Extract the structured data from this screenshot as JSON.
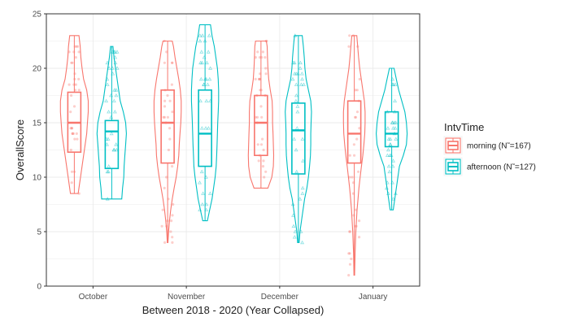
{
  "chart_data": {
    "type": "violin",
    "xlabel": "Between 2018 - 2020 (Year Collapsed)",
    "ylabel": "OverallScore",
    "ylim": [
      0,
      25
    ],
    "yticks": [
      0,
      5,
      10,
      15,
      20,
      25
    ],
    "grid": true,
    "categories": [
      "October",
      "November",
      "December",
      "January"
    ],
    "legend": {
      "title": "IntvTime",
      "placement": "right"
    },
    "series": [
      {
        "name": "morning (N˜=167)",
        "color": "#F8766D",
        "groups": [
          {
            "category": "October",
            "min": 8.5,
            "q1": 12.3,
            "median": 15,
            "q3": 17.8,
            "max": 23,
            "density": [
              [
                8.5,
                0.25
              ],
              [
                10,
                0.4
              ],
              [
                11,
                0.5
              ],
              [
                12,
                0.6
              ],
              [
                13,
                0.7
              ],
              [
                14,
                0.8
              ],
              [
                15,
                0.85
              ],
              [
                16,
                0.9
              ],
              [
                17,
                0.9
              ],
              [
                18,
                0.8
              ],
              [
                19,
                0.6
              ],
              [
                20,
                0.5
              ],
              [
                21,
                0.42
              ],
              [
                22,
                0.38
              ],
              [
                23,
                0.3
              ]
            ]
          },
          {
            "category": "November",
            "min": 4,
            "q1": 11.3,
            "median": 15,
            "q3": 18,
            "max": 22.5,
            "density": [
              [
                4,
                0.02
              ],
              [
                5,
                0.06
              ],
              [
                6,
                0.12
              ],
              [
                7,
                0.2
              ],
              [
                8,
                0.3
              ],
              [
                9,
                0.42
              ],
              [
                10,
                0.55
              ],
              [
                11,
                0.65
              ],
              [
                12,
                0.72
              ],
              [
                13,
                0.75
              ],
              [
                14,
                0.8
              ],
              [
                15,
                0.85
              ],
              [
                16,
                0.88
              ],
              [
                17,
                0.88
              ],
              [
                18,
                0.82
              ],
              [
                19,
                0.72
              ],
              [
                20,
                0.6
              ],
              [
                21,
                0.48
              ],
              [
                22,
                0.38
              ],
              [
                22.5,
                0.3
              ]
            ]
          },
          {
            "category": "December",
            "min": 9,
            "q1": 12,
            "median": 15,
            "q3": 17.5,
            "max": 22.5,
            "density": [
              [
                9,
                0.45
              ],
              [
                10,
                0.7
              ],
              [
                11,
                0.8
              ],
              [
                12,
                0.82
              ],
              [
                13,
                0.8
              ],
              [
                14,
                0.78
              ],
              [
                15,
                0.75
              ],
              [
                16,
                0.75
              ],
              [
                17,
                0.72
              ],
              [
                18,
                0.6
              ],
              [
                19,
                0.5
              ],
              [
                20,
                0.45
              ],
              [
                21,
                0.42
              ],
              [
                22,
                0.4
              ],
              [
                22.5,
                0.35
              ]
            ]
          },
          {
            "category": "January",
            "min": 1,
            "q1": 11.3,
            "median": 14,
            "q3": 17,
            "max": 23,
            "density": [
              [
                1,
                0.02
              ],
              [
                3,
                0.05
              ],
              [
                5,
                0.1
              ],
              [
                7,
                0.18
              ],
              [
                8,
                0.24
              ],
              [
                9,
                0.3
              ],
              [
                10,
                0.38
              ],
              [
                11,
                0.46
              ],
              [
                12,
                0.55
              ],
              [
                13,
                0.62
              ],
              [
                14,
                0.68
              ],
              [
                15,
                0.7
              ],
              [
                16,
                0.7
              ],
              [
                17,
                0.65
              ],
              [
                18,
                0.55
              ],
              [
                19,
                0.45
              ],
              [
                20,
                0.35
              ],
              [
                21,
                0.28
              ],
              [
                22,
                0.22
              ],
              [
                23,
                0.16
              ]
            ]
          }
        ]
      },
      {
        "name": "afternoon (N˜=127)",
        "color": "#00BFC4",
        "groups": [
          {
            "category": "October",
            "min": 8,
            "q1": 10.8,
            "median": 14.2,
            "q3": 15.2,
            "max": 22,
            "density": [
              [
                8,
                0.65
              ],
              [
                9,
                0.7
              ],
              [
                10,
                0.78
              ],
              [
                11,
                0.8
              ],
              [
                12,
                0.85
              ],
              [
                13,
                0.9
              ],
              [
                14,
                0.95
              ],
              [
                15,
                0.9
              ],
              [
                16,
                0.75
              ],
              [
                17,
                0.55
              ],
              [
                18,
                0.45
              ],
              [
                19,
                0.35
              ],
              [
                20,
                0.25
              ],
              [
                21,
                0.15
              ],
              [
                22,
                0.08
              ]
            ]
          },
          {
            "category": "November",
            "min": 6,
            "q1": 11,
            "median": 14,
            "q3": 18,
            "max": 24,
            "density": [
              [
                6,
                0.15
              ],
              [
                7,
                0.3
              ],
              [
                8,
                0.45
              ],
              [
                9,
                0.55
              ],
              [
                10,
                0.65
              ],
              [
                11,
                0.72
              ],
              [
                12,
                0.75
              ],
              [
                13,
                0.78
              ],
              [
                14,
                0.8
              ],
              [
                15,
                0.82
              ],
              [
                16,
                0.85
              ],
              [
                17,
                0.88
              ],
              [
                18,
                0.88
              ],
              [
                19,
                0.85
              ],
              [
                20,
                0.8
              ],
              [
                21,
                0.7
              ],
              [
                22,
                0.6
              ],
              [
                23,
                0.45
              ],
              [
                24,
                0.35
              ]
            ]
          },
          {
            "category": "December",
            "min": 4,
            "q1": 10.3,
            "median": 14.3,
            "q3": 16.8,
            "max": 23,
            "density": [
              [
                4,
                0.05
              ],
              [
                5,
                0.1
              ],
              [
                6,
                0.2
              ],
              [
                7,
                0.3
              ],
              [
                8,
                0.4
              ],
              [
                9,
                0.55
              ],
              [
                10,
                0.65
              ],
              [
                11,
                0.72
              ],
              [
                12,
                0.78
              ],
              [
                13,
                0.8
              ],
              [
                14,
                0.8
              ],
              [
                15,
                0.82
              ],
              [
                16,
                0.85
              ],
              [
                17,
                0.8
              ],
              [
                18,
                0.65
              ],
              [
                19,
                0.5
              ],
              [
                20,
                0.42
              ],
              [
                21,
                0.38
              ],
              [
                22,
                0.32
              ],
              [
                23,
                0.25
              ]
            ]
          },
          {
            "category": "January",
            "min": 7,
            "q1": 12.8,
            "median": 14,
            "q3": 16,
            "max": 20,
            "density": [
              [
                7,
                0.1
              ],
              [
                8,
                0.2
              ],
              [
                9,
                0.3
              ],
              [
                10,
                0.4
              ],
              [
                11,
                0.5
              ],
              [
                12,
                0.75
              ],
              [
                13,
                0.95
              ],
              [
                14,
                1.0
              ],
              [
                15,
                0.95
              ],
              [
                16,
                0.85
              ],
              [
                17,
                0.65
              ],
              [
                18,
                0.45
              ],
              [
                19,
                0.3
              ],
              [
                20,
                0.15
              ]
            ]
          }
        ]
      }
    ]
  }
}
